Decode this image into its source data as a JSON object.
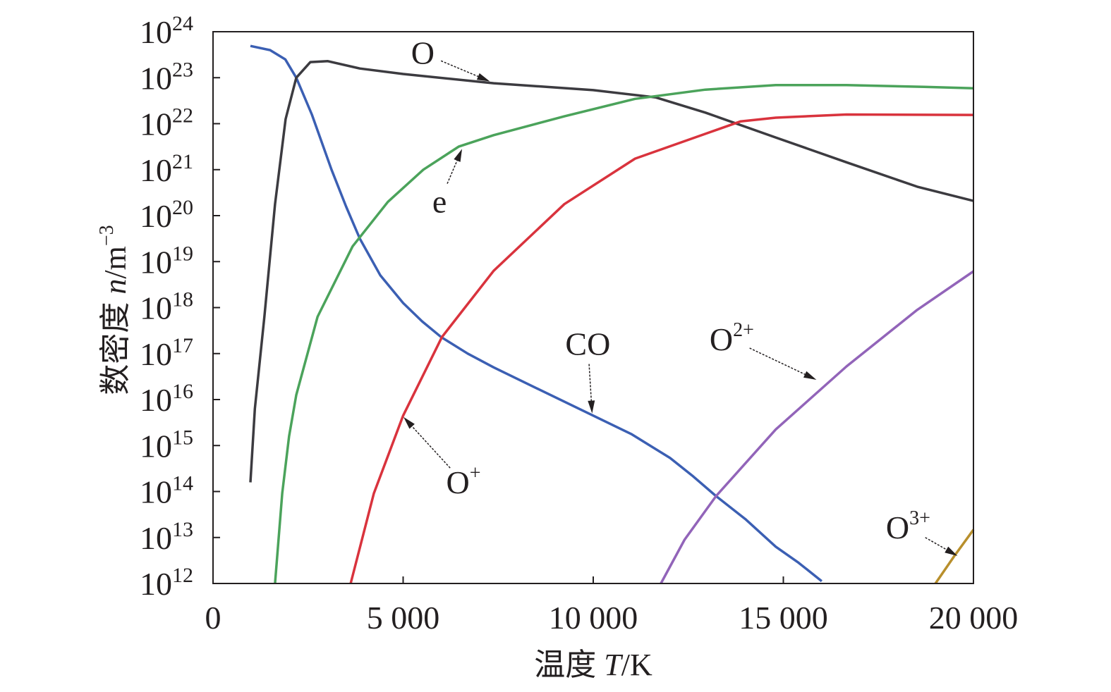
{
  "chart_data": {
    "type": "line",
    "title": "",
    "xlabel": {
      "prefix": "温度 ",
      "var": "T",
      "unit": "/K"
    },
    "ylabel": {
      "prefix": "数密度 ",
      "var": "n",
      "unit": "/m",
      "exp": "−3"
    },
    "xlim": [
      0,
      20000
    ],
    "ylim_log10": [
      12,
      24
    ],
    "y_scale": "log",
    "grid": false,
    "x_ticks": [
      {
        "value": 0,
        "label": "0"
      },
      {
        "value": 5000,
        "label": "5 000"
      },
      {
        "value": 10000,
        "label": "10 000"
      },
      {
        "value": 15000,
        "label": "15 000"
      },
      {
        "value": 20000,
        "label": "20 000"
      }
    ],
    "y_ticks": [
      {
        "base": "10",
        "exp": "12"
      },
      {
        "base": "10",
        "exp": "13"
      },
      {
        "base": "10",
        "exp": "14"
      },
      {
        "base": "10",
        "exp": "15"
      },
      {
        "base": "10",
        "exp": "16"
      },
      {
        "base": "10",
        "exp": "17"
      },
      {
        "base": "10",
        "exp": "18"
      },
      {
        "base": "10",
        "exp": "19"
      },
      {
        "base": "10",
        "exp": "20"
      },
      {
        "base": "10",
        "exp": "21"
      },
      {
        "base": "10",
        "exp": "22"
      },
      {
        "base": "10",
        "exp": "23"
      },
      {
        "base": "10",
        "exp": "24"
      }
    ],
    "series": [
      {
        "name": "CO",
        "color": "#3b5fb3",
        "T": [
          983,
          1500,
          1900,
          2190,
          2600,
          3117,
          3500,
          3860,
          4400,
          5000,
          5500,
          6000,
          6700,
          7380,
          8500,
          10000,
          11000,
          12020,
          12600,
          13230,
          14000,
          14800,
          15400,
          16010
        ],
        "log_n": [
          23.69,
          23.6,
          23.4,
          23.0,
          22.2,
          21.0,
          20.2,
          19.5,
          18.7,
          18.1,
          17.7,
          17.36,
          17.0,
          16.7,
          16.25,
          15.65,
          15.25,
          14.73,
          14.35,
          13.9,
          13.4,
          12.8,
          12.45,
          12.05
        ]
      },
      {
        "name": "O",
        "color": "#3c3b40",
        "T": [
          983,
          1100,
          1350,
          1630,
          1910,
          2190,
          2560,
          3020,
          3860,
          5000,
          7380,
          10000,
          11650,
          12950,
          14800,
          16660,
          18520,
          20000
        ],
        "log_n": [
          14.2,
          15.8,
          17.8,
          20.25,
          22.1,
          23.0,
          23.34,
          23.36,
          23.2,
          23.08,
          22.88,
          22.73,
          22.57,
          22.24,
          21.7,
          21.16,
          20.63,
          20.32
        ]
      },
      {
        "name": "e",
        "color": "#4ba35b",
        "T": [
          1630,
          1820,
          2000,
          2190,
          2750,
          3670,
          4600,
          5530,
          6460,
          7380,
          9240,
          11100,
          12950,
          14800,
          16660,
          18700,
          20000
        ],
        "log_n": [
          12.0,
          13.96,
          15.2,
          16.1,
          17.8,
          19.33,
          20.3,
          21.0,
          21.5,
          21.75,
          22.16,
          22.54,
          22.74,
          22.84,
          22.84,
          22.8,
          22.77
        ]
      },
      {
        "name": "O+",
        "color": "#d9333d",
        "T": [
          3620,
          4230,
          5000,
          6020,
          7380,
          9240,
          11100,
          12950,
          13880,
          14800,
          16660,
          20000
        ],
        "log_n": [
          12.0,
          13.96,
          15.65,
          17.36,
          18.8,
          20.25,
          21.24,
          21.78,
          22.05,
          22.13,
          22.2,
          22.19
        ]
      },
      {
        "name": "O2+",
        "color": "#9264b9",
        "T": [
          11780,
          12400,
          13230,
          14800,
          16660,
          18520,
          20000
        ],
        "log_n": [
          12.0,
          12.95,
          13.9,
          15.35,
          16.72,
          17.95,
          18.79
        ]
      },
      {
        "name": "O3+",
        "color": "#b88f2c",
        "T": [
          19000,
          19500,
          20000
        ],
        "log_n": [
          12.0,
          12.6,
          13.17
        ]
      }
    ],
    "annotations": [
      {
        "base": "O",
        "sup": "",
        "target": [
          7280,
          22.92
        ]
      },
      {
        "base": "e",
        "sup": "",
        "target": [
          6550,
          21.45
        ]
      },
      {
        "base": "CO",
        "sup": "",
        "target": [
          9970,
          15.7
        ]
      },
      {
        "base": "O",
        "sup": "+",
        "target": [
          5010,
          15.62
        ]
      },
      {
        "base": "O",
        "sup": "2+",
        "target": [
          15870,
          16.43
        ]
      },
      {
        "base": "O",
        "sup": "3+",
        "target": [
          19580,
          12.6
        ]
      }
    ]
  }
}
